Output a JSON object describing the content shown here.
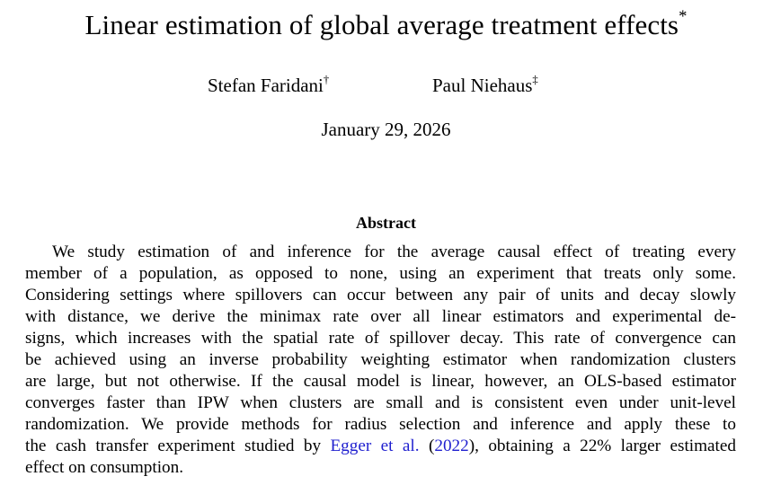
{
  "title": "Linear estimation of global average treatment effects",
  "title_mark": "*",
  "authors": [
    {
      "name": "Stefan Faridani",
      "mark": "†"
    },
    {
      "name": "Paul Niehaus",
      "mark": "‡"
    }
  ],
  "date": "January 29, 2026",
  "abstract": {
    "heading": "Abstract",
    "lines": [
      "We study estimation of and inference for the average causal effect of treating every",
      "member of a population, as opposed to none, using an experiment that treats only some.",
      "Considering settings where spillovers can occur between any pair of units and decay slowly",
      "with distance, we derive the minimax rate over all linear estimators and experimental de-",
      "signs, which increases with the spatial rate of spillover decay. This rate of convergence can",
      "be achieved using an inverse probability weighting estimator when randomization clusters",
      "are large, but not otherwise. If the causal model is linear, however, an OLS-based estimator",
      "converges faster than IPW when clusters are small and is consistent even under unit-level",
      "randomization. We provide methods for radius selection and inference and apply these to"
    ],
    "citation_line": {
      "before": "the cash transfer experiment studied by",
      "cite_author": "Egger et al.",
      "open_paren": "(",
      "cite_year": "2022",
      "after": "), obtaining a 22% larger estimated"
    },
    "last_line": "effect on consumption."
  },
  "colors": {
    "text": "#000000",
    "citation_link": "#1f1fcf"
  }
}
